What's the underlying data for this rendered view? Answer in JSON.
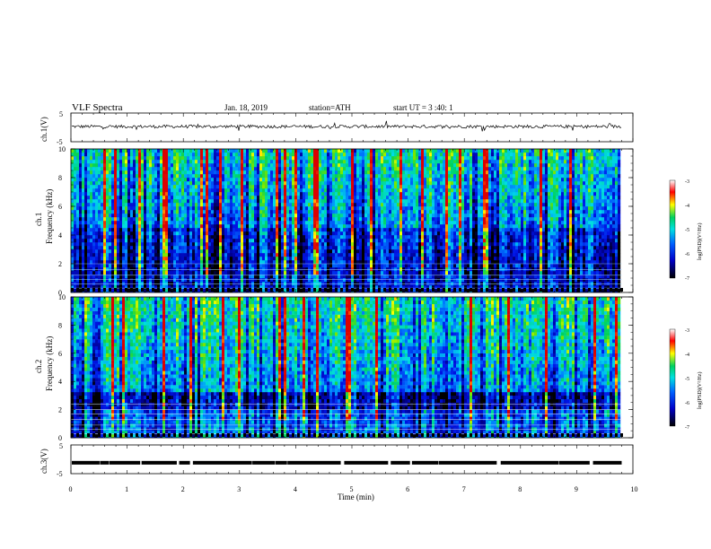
{
  "header": {
    "title": "VLF  Spectra",
    "date": "Jan. 18, 2019",
    "station": "station=ATH",
    "start": "start  UT  =   3  :40: 1"
  },
  "chart_data": [
    {
      "type": "line",
      "panel": "ch1",
      "ylabel": "ch.1(V)",
      "yticks": [
        "5",
        "-5"
      ],
      "ylim": [
        -5,
        5
      ],
      "xlim": [
        0,
        10
      ],
      "x_end_data": 9.8,
      "description_level": 0.3,
      "noise_amplitude": 0.55
    },
    {
      "type": "heatmap",
      "panel": "ch1-spectrogram",
      "ylabel_top": "ch.1",
      "ylabel": "Frequency  (kHz)",
      "yticks": [
        "0",
        "2",
        "4",
        "6",
        "8",
        "10"
      ],
      "ylim": [
        0,
        10
      ],
      "xlim": [
        0,
        10
      ],
      "x_end_data": 9.8,
      "colorbar": {
        "label": "log(PSD)(V²/Hz)",
        "ticks": [
          "-3",
          "-4",
          "-5",
          "-6",
          "-7"
        ],
        "range": [
          -7,
          -3
        ]
      }
    },
    {
      "type": "heatmap",
      "panel": "ch2-spectrogram",
      "ylabel_top": "ch.2",
      "ylabel": "Frequency  (kHz)",
      "yticks": [
        "0",
        "2",
        "4",
        "6",
        "8",
        "10"
      ],
      "ylim": [
        0,
        10
      ],
      "xlim": [
        0,
        10
      ],
      "x_end_data": 9.8,
      "colorbar": {
        "label": "log(PSD)(V²/Hz)",
        "ticks": [
          "-3",
          "-4",
          "-5",
          "-6",
          "-7"
        ],
        "range": [
          -7,
          -3
        ]
      }
    },
    {
      "type": "line",
      "panel": "ch3",
      "ylabel": "ch.3(V)",
      "yticks": [
        "5",
        "-5"
      ],
      "ylim": [
        -5,
        5
      ],
      "xlim": [
        0,
        10
      ],
      "x_end_data": 9.8,
      "level": -1.2,
      "xlabel": "Time  (min)",
      "xticks": [
        "0",
        "1",
        "2",
        "3",
        "4",
        "5",
        "6",
        "7",
        "8",
        "9",
        "10"
      ]
    }
  ],
  "colors": {
    "axis": "#000000",
    "colormap": [
      "#000000",
      "#0000c0",
      "#1a3cff",
      "#00c8ff",
      "#00e070",
      "#ffff00",
      "#ff0000",
      "#ffffff"
    ]
  }
}
